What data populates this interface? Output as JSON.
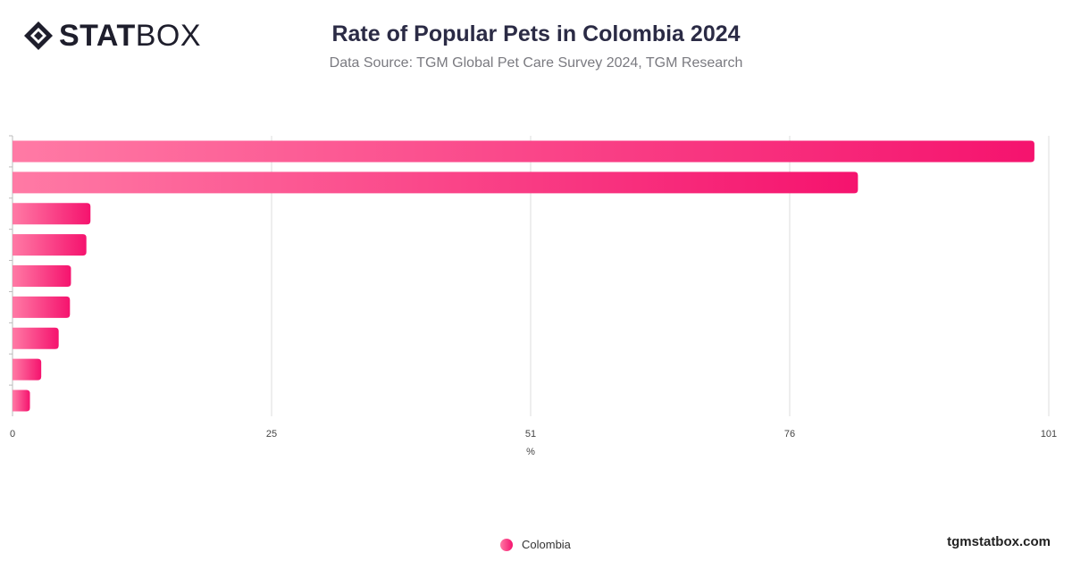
{
  "header": {
    "logo_bold": "STAT",
    "logo_light": "BOX",
    "title": "Rate of Popular Pets in Colombia 2024",
    "subtitle": "Data Source: TGM Global Pet Care Survey 2024, TGM Research"
  },
  "footer": {
    "site": "tgmstatbox.com"
  },
  "colors": {
    "bar_start": "#ff7aa5",
    "bar_end": "#f5136e",
    "grid": "#dddddd",
    "axis": "#bbbbbb"
  },
  "chart_data": {
    "type": "bar",
    "orientation": "horizontal",
    "title": "Rate of Popular Pets in Colombia 2024",
    "subtitle": "Data Source: TGM Global Pet Care Survey 2024, TGM Research",
    "xlabel": "%",
    "ylabel": "",
    "xlim": [
      0,
      101
    ],
    "x_ticks": [
      "0",
      "25",
      "51",
      "76",
      "101"
    ],
    "x_tick_values": [
      0,
      25.25,
      50.5,
      75.75,
      101
    ],
    "categories": [
      "",
      "",
      "",
      "",
      "",
      "",
      "",
      "",
      ""
    ],
    "series": [
      {
        "name": "Colombia",
        "values": [
          99.6,
          82.4,
          7.6,
          7.2,
          5.7,
          5.6,
          4.5,
          2.8,
          1.7
        ]
      }
    ],
    "grid": true,
    "legend": "bottom-center"
  }
}
